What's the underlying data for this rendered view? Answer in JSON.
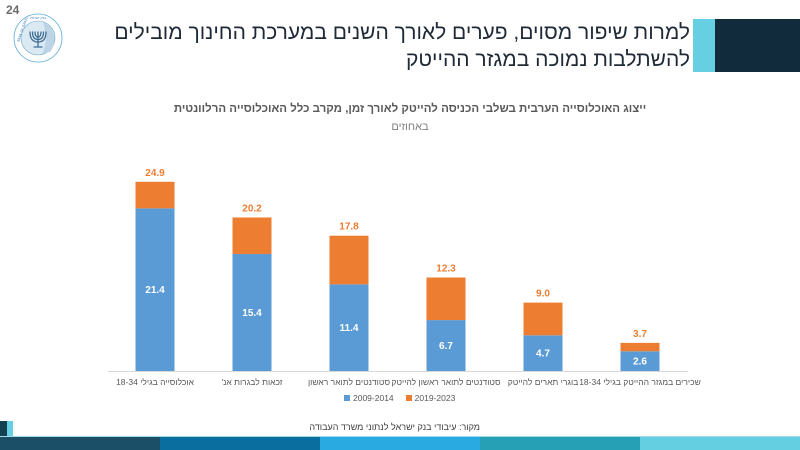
{
  "page": {
    "number": "24",
    "title": "למרות שיפור מסוים, פערים לאורך השנים במערכת החינוך מובילים להשתלבות נמוכה במגזר ההייטק"
  },
  "logo": {
    "icon": "bank-of-israel-menorah-logo",
    "text_en": "BANK OF ISRAEL",
    "text_he": "בנק ישראל"
  },
  "colors": {
    "accent_light": "#66cfe2",
    "accent_dark": "#112b3d",
    "series_2009_2014": "#5b9bd5",
    "series_2019_2023": "#ed7d31",
    "footer": [
      "#1b4f68",
      "#0a6e9e",
      "#29aae1",
      "#26a0b5",
      "#64cfe0"
    ]
  },
  "chart_data": {
    "type": "bar",
    "stacked": true,
    "title": "ייצוג האוכלוסייה הערבית בשלבי הכניסה להייטק לאורך זמן, מקרב כלל האוכלוסייה הרלוונטית",
    "subtitle": "באחוזים",
    "xlabel": "",
    "ylabel": "",
    "ylim": [
      0,
      26
    ],
    "grid": false,
    "legend_position": "bottom",
    "categories": [
      "אוכלוסייה בגילי 18-34",
      "זכאות לבגרות אנ'",
      "סטודנטים לתואר ראשון",
      "סטודנטים לתואר ראשון להייטק",
      "בוגרי תארים להייטק",
      "שכירים במגזר ההייטק בגילי 18-34"
    ],
    "series": [
      {
        "name": "2009-2014",
        "values": [
          21.4,
          15.4,
          11.4,
          6.7,
          4.7,
          2.6
        ]
      },
      {
        "name": "2019-2023",
        "values": [
          24.9,
          20.2,
          17.8,
          12.3,
          9.0,
          3.7
        ]
      }
    ],
    "data_labels": {
      "2009-2014": [
        "21.4",
        "15.4",
        "11.4",
        "6.7",
        "4.7",
        "2.6"
      ],
      "2019-2023": [
        "24.9",
        "20.2",
        "17.8",
        "12.3",
        "9.0",
        "3.7"
      ]
    },
    "note": "The 2019-2023 segment is drawn stacked above 2009-2014 so that the total bar height equals the 2019-2023 value."
  },
  "legend": {
    "items": [
      {
        "label": "2009-2014"
      },
      {
        "label": "2019-2023"
      }
    ]
  },
  "source": "מקור: עיבודי בנק ישראל לנתוני משרד העבודה"
}
